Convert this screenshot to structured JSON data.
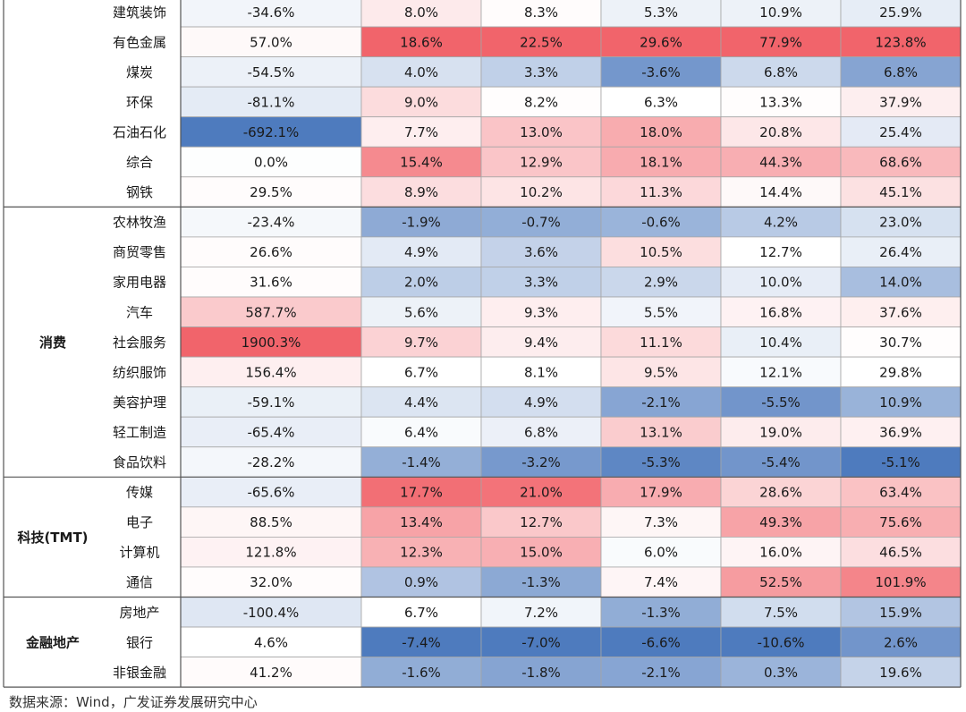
{
  "chart_data": {
    "type": "heatmap",
    "groups": [
      {
        "name": "",
        "rows": [
          {
            "industry": "建筑装饰",
            "values": [
              "-34.6%",
              "8.0%",
              "8.3%",
              "5.3%",
              "10.9%",
              "25.9%"
            ]
          },
          {
            "industry": "有色金属",
            "values": [
              "57.0%",
              "18.6%",
              "22.5%",
              "29.6%",
              "77.9%",
              "123.8%"
            ]
          },
          {
            "industry": "煤炭",
            "values": [
              "-54.5%",
              "4.0%",
              "3.3%",
              "-3.6%",
              "6.8%",
              "6.8%"
            ]
          },
          {
            "industry": "环保",
            "values": [
              "-81.1%",
              "9.0%",
              "8.2%",
              "6.3%",
              "13.3%",
              "37.9%"
            ]
          },
          {
            "industry": "石油石化",
            "values": [
              "-692.1%",
              "7.7%",
              "13.0%",
              "18.0%",
              "20.8%",
              "25.4%"
            ]
          },
          {
            "industry": "综合",
            "values": [
              "0.0%",
              "15.4%",
              "12.9%",
              "18.1%",
              "44.3%",
              "68.6%"
            ]
          },
          {
            "industry": "钢铁",
            "values": [
              "29.5%",
              "8.9%",
              "10.2%",
              "11.3%",
              "14.4%",
              "45.1%"
            ]
          }
        ]
      },
      {
        "name": "消费",
        "rows": [
          {
            "industry": "农林牧渔",
            "values": [
              "-23.4%",
              "-1.9%",
              "-0.7%",
              "-0.6%",
              "4.2%",
              "23.0%"
            ]
          },
          {
            "industry": "商贸零售",
            "values": [
              "26.6%",
              "4.9%",
              "3.6%",
              "10.5%",
              "12.7%",
              "26.4%"
            ]
          },
          {
            "industry": "家用电器",
            "values": [
              "31.6%",
              "2.0%",
              "3.3%",
              "2.9%",
              "10.0%",
              "14.0%"
            ]
          },
          {
            "industry": "汽车",
            "values": [
              "587.7%",
              "5.6%",
              "9.3%",
              "5.5%",
              "16.8%",
              "37.6%"
            ]
          },
          {
            "industry": "社会服务",
            "values": [
              "1900.3%",
              "9.7%",
              "9.4%",
              "11.1%",
              "10.4%",
              "30.7%"
            ]
          },
          {
            "industry": "纺织服饰",
            "values": [
              "156.4%",
              "6.7%",
              "8.1%",
              "9.5%",
              "12.1%",
              "29.8%"
            ]
          },
          {
            "industry": "美容护理",
            "values": [
              "-59.1%",
              "4.4%",
              "4.9%",
              "-2.1%",
              "-5.5%",
              "10.9%"
            ]
          },
          {
            "industry": "轻工制造",
            "values": [
              "-65.4%",
              "6.4%",
              "6.8%",
              "13.1%",
              "19.0%",
              "36.9%"
            ]
          },
          {
            "industry": "食品饮料",
            "values": [
              "-28.2%",
              "-1.4%",
              "-3.2%",
              "-5.3%",
              "-5.4%",
              "-5.1%"
            ]
          }
        ]
      },
      {
        "name": "科技(TMT)",
        "rows": [
          {
            "industry": "传媒",
            "values": [
              "-65.6%",
              "17.7%",
              "21.0%",
              "17.9%",
              "28.6%",
              "63.4%"
            ]
          },
          {
            "industry": "电子",
            "values": [
              "88.5%",
              "13.4%",
              "12.7%",
              "7.3%",
              "49.3%",
              "75.6%"
            ]
          },
          {
            "industry": "计算机",
            "values": [
              "121.8%",
              "12.3%",
              "15.0%",
              "6.0%",
              "16.0%",
              "46.5%"
            ]
          },
          {
            "industry": "通信",
            "values": [
              "32.0%",
              "0.9%",
              "-1.3%",
              "7.4%",
              "52.5%",
              "101.9%"
            ]
          }
        ]
      },
      {
        "name": "金融地产",
        "rows": [
          {
            "industry": "房地产",
            "values": [
              "-100.4%",
              "6.7%",
              "7.2%",
              "-1.3%",
              "7.5%",
              "15.9%"
            ]
          },
          {
            "industry": "银行",
            "values": [
              "4.6%",
              "-7.4%",
              "-7.0%",
              "-6.6%",
              "-10.6%",
              "2.6%"
            ]
          },
          {
            "industry": "非银金融",
            "values": [
              "41.2%",
              "-1.6%",
              "-1.8%",
              "-2.1%",
              "0.3%",
              "19.6%"
            ]
          }
        ]
      }
    ]
  },
  "source": "数据来源：Wind，广发证券发展研究中心",
  "colors": {
    "grid": "#a6a6a6",
    "group_border": "#555555",
    "positive": "#f0575e",
    "negative": "#3f6fb8",
    "neutral": "#ffffff"
  }
}
